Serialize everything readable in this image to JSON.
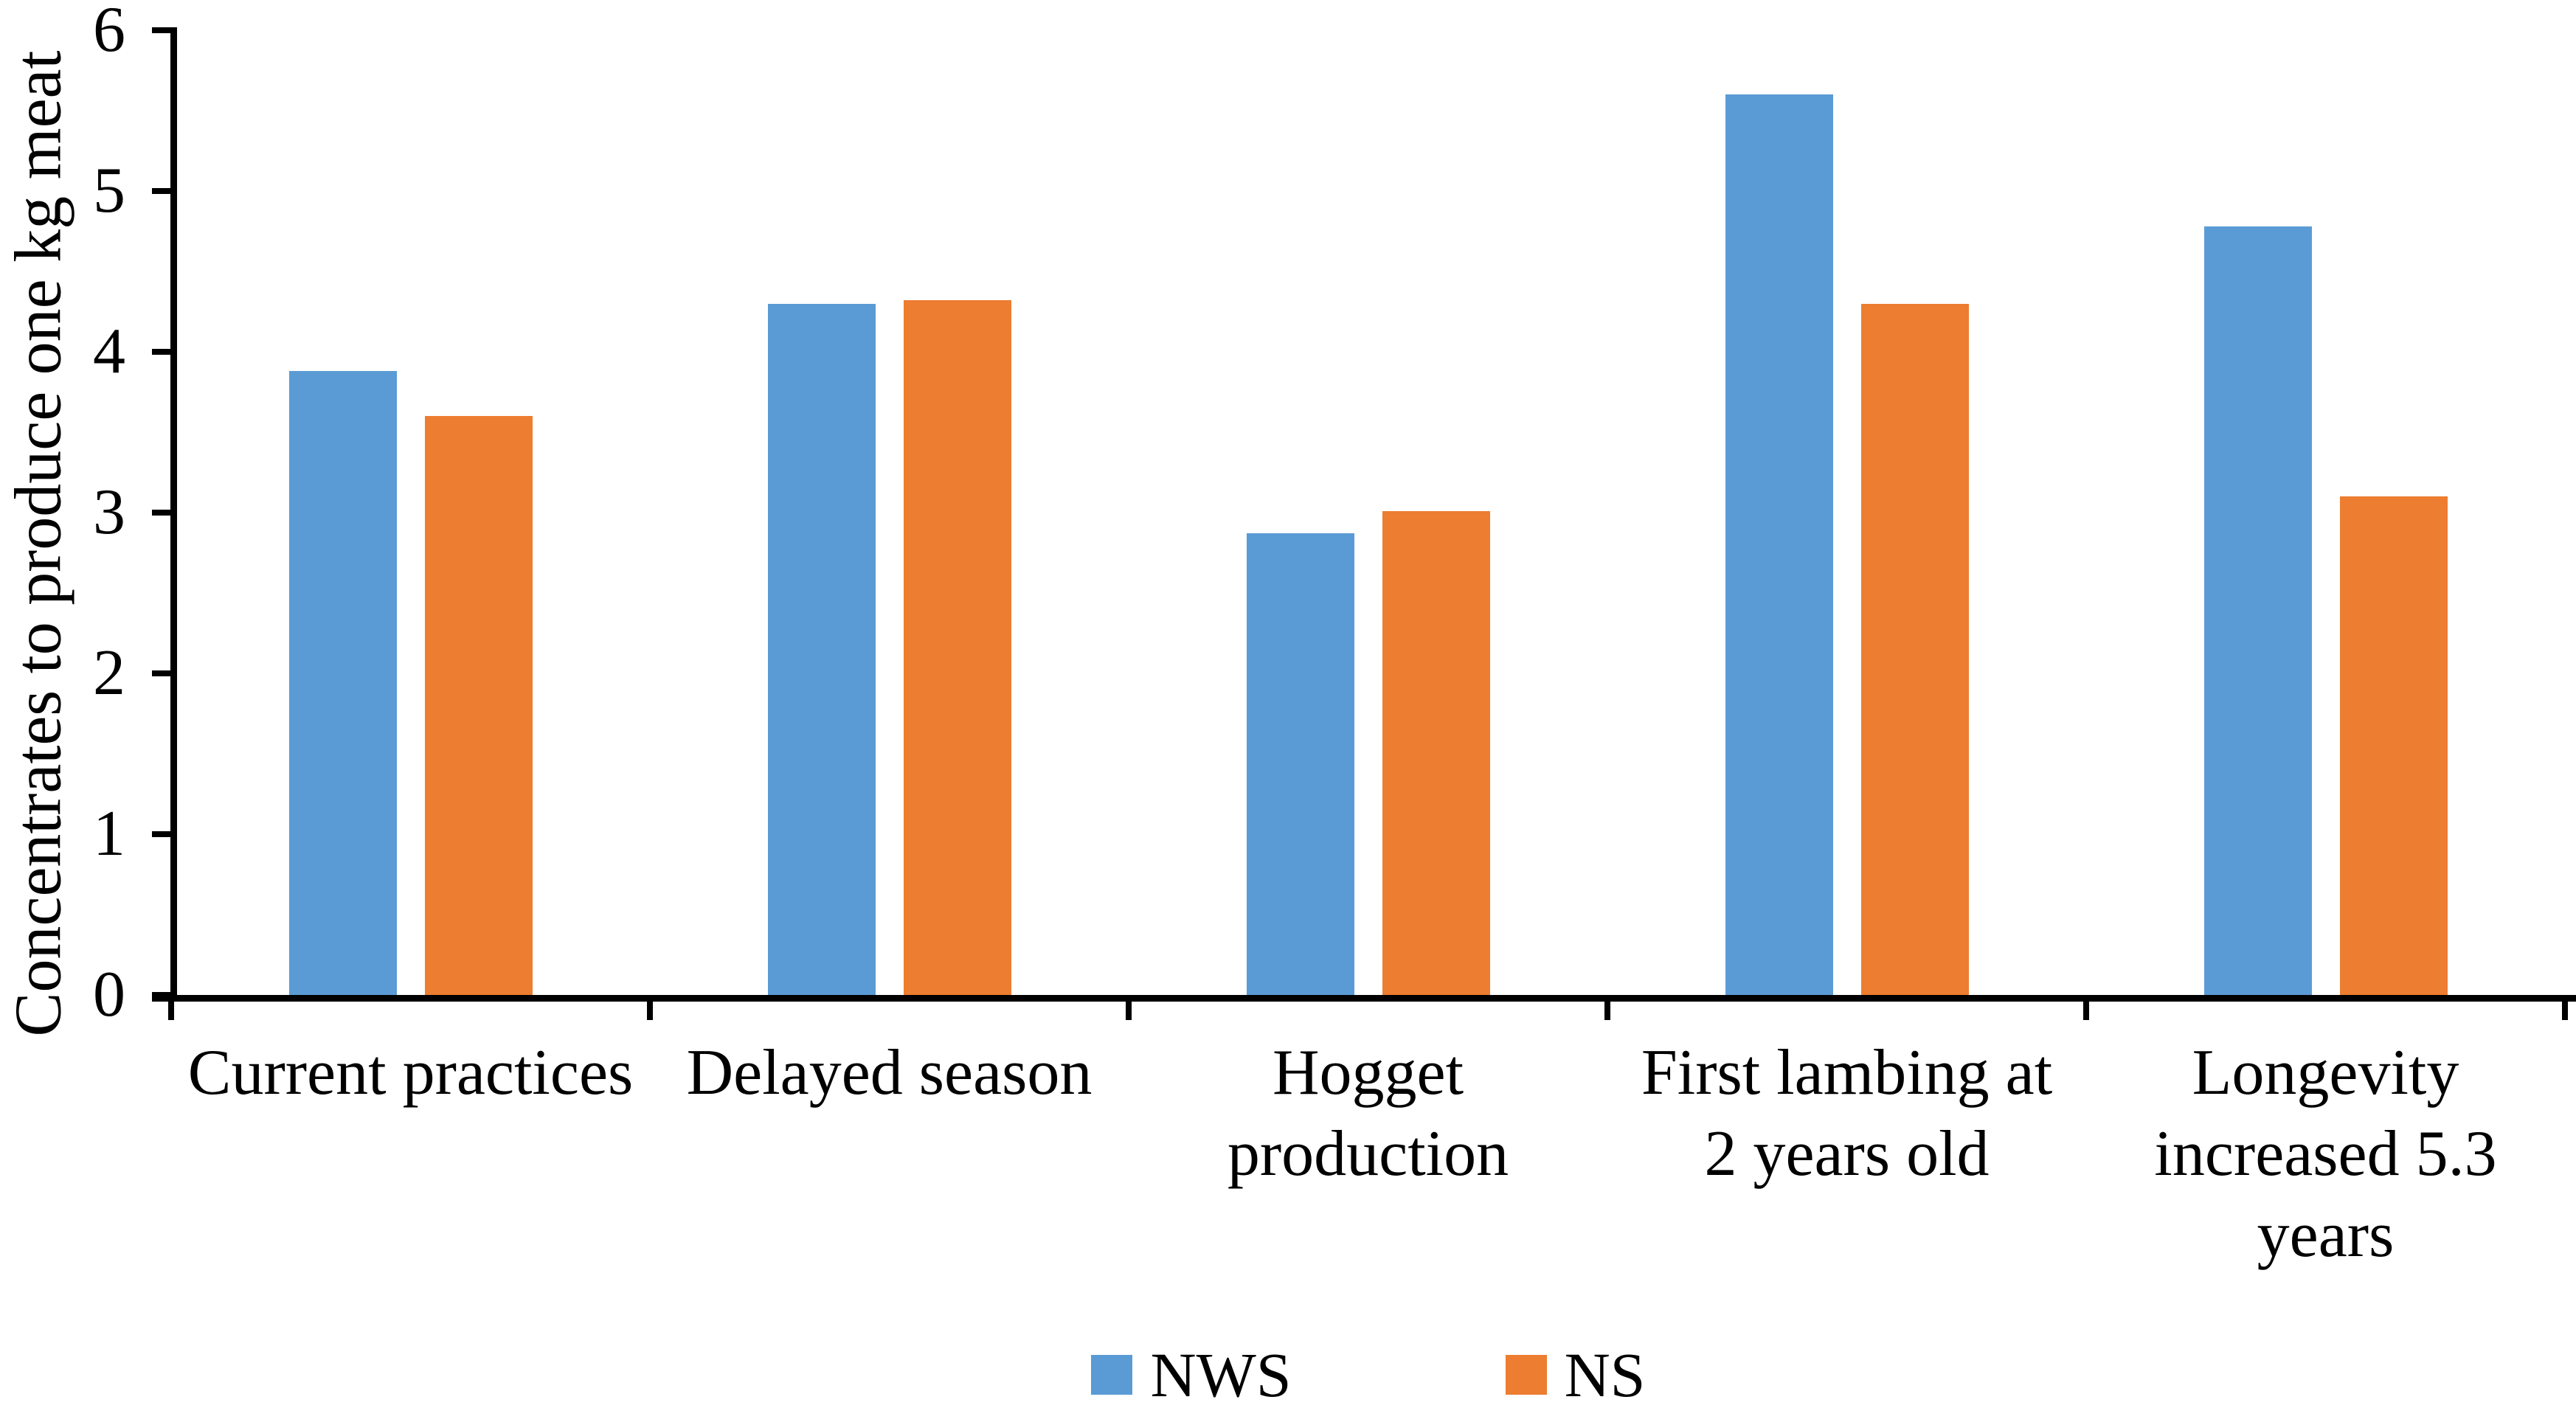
{
  "chart_data": {
    "type": "bar",
    "title": "",
    "ylabel": "Concentrates to produce one kg meat",
    "xlabel": "",
    "ylim": [
      0,
      6
    ],
    "y_ticks": [
      0,
      1,
      2,
      3,
      4,
      5,
      6
    ],
    "grid": false,
    "legend_position": "bottom",
    "categories": [
      "Current practices",
      "Delayed season",
      "Hogget production",
      "First lambing at 2 years old",
      "Longevity increased 5.3 years"
    ],
    "category_label_lines": [
      [
        "Current practices"
      ],
      [
        "Delayed season"
      ],
      [
        "Hogget",
        "production"
      ],
      [
        "First lambing at",
        "2 years old"
      ],
      [
        "Longevity",
        "increased 5.3",
        "years"
      ]
    ],
    "series": [
      {
        "name": "NWS",
        "color": "#5B9BD5",
        "values": [
          3.88,
          4.3,
          2.87,
          5.6,
          4.78
        ]
      },
      {
        "name": "NS",
        "color": "#ED7D31",
        "values": [
          3.6,
          4.32,
          3.01,
          4.3,
          3.1
        ]
      }
    ]
  }
}
